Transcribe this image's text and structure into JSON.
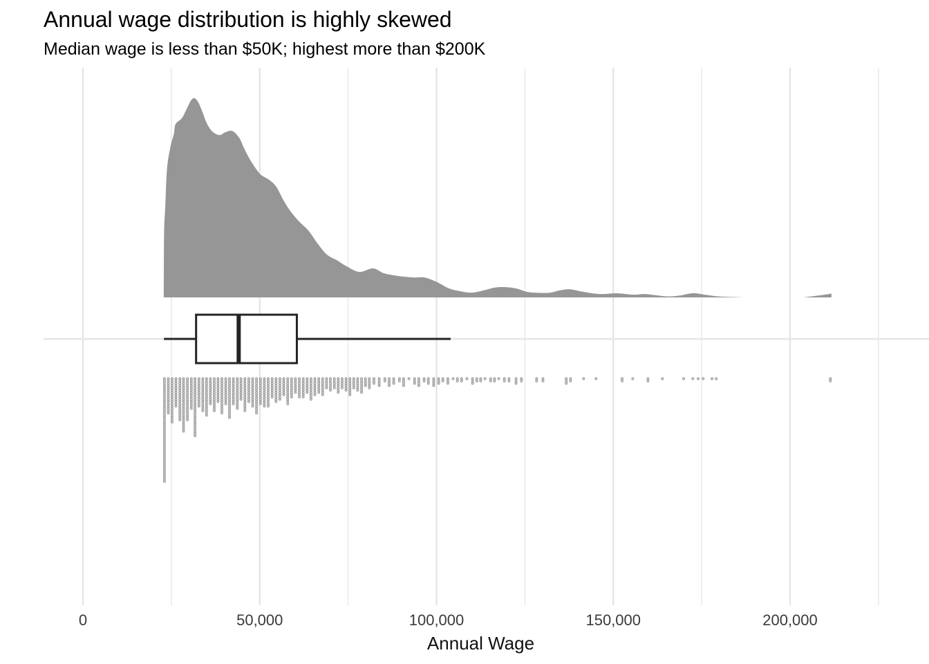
{
  "chart_data": {
    "type": "area",
    "variant": "raincloud: density area + horizontal boxplot + binned dot strip",
    "title": "Annual wage distribution is highly skewed",
    "subtitle": "Median wage is less than $50K; highest more than $200K",
    "xlabel": "Annual Wage",
    "xlim": [
      -11150,
      239300
    ],
    "grid": "vertical gridlines every 25,000 (majors at labeled breaks), single horizontal gridline through boxplot row",
    "legend_position": "none",
    "x_ticks": [
      {
        "value": 0,
        "label": "0"
      },
      {
        "value": 50000,
        "label": "50,000"
      },
      {
        "value": 100000,
        "label": "100,000"
      },
      {
        "value": 150000,
        "label": "150,000"
      },
      {
        "value": 200000,
        "label": "200,000"
      }
    ],
    "x_minor_gridlines": [
      25000,
      75000,
      125000,
      175000,
      225000
    ],
    "density": {
      "description": "kernel density of annual wage, trimmed to data range; heights normalized 0-1",
      "points": [
        [
          22850,
          0
        ],
        [
          22950,
          0.32
        ],
        [
          23300,
          0.46
        ],
        [
          23800,
          0.65
        ],
        [
          24800,
          0.76
        ],
        [
          25700,
          0.82
        ],
        [
          26200,
          0.87
        ],
        [
          28000,
          0.9
        ],
        [
          29300,
          0.945
        ],
        [
          30600,
          0.99
        ],
        [
          31600,
          1.0
        ],
        [
          32600,
          0.98
        ],
        [
          33600,
          0.94
        ],
        [
          35150,
          0.87
        ],
        [
          36800,
          0.83
        ],
        [
          38700,
          0.815
        ],
        [
          40350,
          0.83
        ],
        [
          42300,
          0.835
        ],
        [
          44250,
          0.8
        ],
        [
          45550,
          0.75
        ],
        [
          47500,
          0.685
        ],
        [
          50100,
          0.62
        ],
        [
          52700,
          0.59
        ],
        [
          54700,
          0.555
        ],
        [
          56650,
          0.49
        ],
        [
          58600,
          0.435
        ],
        [
          61200,
          0.38
        ],
        [
          63800,
          0.335
        ],
        [
          66400,
          0.27
        ],
        [
          69000,
          0.215
        ],
        [
          72000,
          0.185
        ],
        [
          74200,
          0.16
        ],
        [
          78100,
          0.128
        ],
        [
          82000,
          0.146
        ],
        [
          85000,
          0.122
        ],
        [
          87900,
          0.111
        ],
        [
          90800,
          0.104
        ],
        [
          93800,
          0.1
        ],
        [
          96700,
          0.1
        ],
        [
          100250,
          0.076
        ],
        [
          103500,
          0.045
        ],
        [
          106750,
          0.031
        ],
        [
          110000,
          0.024
        ],
        [
          113300,
          0.035
        ],
        [
          116400,
          0.049
        ],
        [
          119100,
          0.052
        ],
        [
          122500,
          0.045
        ],
        [
          125600,
          0.028
        ],
        [
          128900,
          0.023
        ],
        [
          132200,
          0.024
        ],
        [
          134800,
          0.035
        ],
        [
          137700,
          0.041
        ],
        [
          140700,
          0.031
        ],
        [
          144000,
          0.021
        ],
        [
          147100,
          0.017
        ],
        [
          151000,
          0.021
        ],
        [
          155600,
          0.014
        ],
        [
          158850,
          0.017
        ],
        [
          162100,
          0.011
        ],
        [
          165350,
          0.005
        ],
        [
          168600,
          0.009
        ],
        [
          172500,
          0.021
        ],
        [
          175800,
          0.014
        ],
        [
          179700,
          0.005
        ],
        [
          183600,
          0.002
        ],
        [
          186850,
          0
        ]
      ],
      "tail_blip_points": [
        [
          203800,
          0
        ],
        [
          206500,
          0.006
        ],
        [
          209500,
          0.013
        ],
        [
          211700,
          0.019
        ]
      ]
    },
    "boxplot": {
      "whisker_min": 22900,
      "q1": 32000,
      "median": 44050,
      "q3": 60500,
      "whisker_max": 104000
    },
    "dot_columns": [
      [
        23050,
        46
      ],
      [
        24150,
        16
      ],
      [
        25200,
        20
      ],
      [
        26300,
        13
      ],
      [
        27400,
        19
      ],
      [
        28450,
        24
      ],
      [
        29550,
        19
      ],
      [
        30650,
        14
      ],
      [
        31700,
        26
      ],
      [
        32800,
        13
      ],
      [
        33900,
        15
      ],
      [
        34950,
        17
      ],
      [
        36050,
        12
      ],
      [
        37150,
        15
      ],
      [
        38200,
        11
      ],
      [
        39300,
        16
      ],
      [
        40400,
        12
      ],
      [
        41450,
        18
      ],
      [
        42550,
        12
      ],
      [
        43650,
        14
      ],
      [
        44700,
        10
      ],
      [
        45800,
        15
      ],
      [
        46900,
        11
      ],
      [
        48000,
        13
      ],
      [
        49100,
        16
      ],
      [
        50200,
        12
      ],
      [
        51300,
        13
      ],
      [
        52400,
        13
      ],
      [
        53500,
        9
      ],
      [
        54600,
        11
      ],
      [
        55700,
        10
      ],
      [
        56800,
        8
      ],
      [
        57900,
        12
      ],
      [
        59000,
        9
      ],
      [
        60100,
        7
      ],
      [
        61200,
        9
      ],
      [
        62300,
        9
      ],
      [
        63400,
        7
      ],
      [
        64500,
        10
      ],
      [
        65600,
        8
      ],
      [
        66700,
        7
      ],
      [
        67800,
        8
      ],
      [
        68900,
        5
      ],
      [
        70000,
        6
      ],
      [
        71100,
        5
      ],
      [
        72200,
        7
      ],
      [
        73300,
        5
      ],
      [
        74400,
        6
      ],
      [
        75500,
        8
      ],
      [
        76600,
        5
      ],
      [
        77700,
        6
      ],
      [
        78800,
        7
      ],
      [
        79900,
        4
      ],
      [
        81000,
        5
      ],
      [
        82300,
        3
      ],
      [
        83800,
        4
      ],
      [
        85400,
        2
      ],
      [
        86600,
        4
      ],
      [
        87900,
        3
      ],
      [
        89500,
        2
      ],
      [
        90700,
        4
      ],
      [
        92200,
        1
      ],
      [
        93800,
        3
      ],
      [
        95000,
        4
      ],
      [
        96500,
        2
      ],
      [
        97700,
        3
      ],
      [
        99200,
        4
      ],
      [
        100600,
        3
      ],
      [
        101800,
        2
      ],
      [
        103200,
        3
      ],
      [
        104700,
        1
      ],
      [
        105900,
        2
      ],
      [
        107100,
        2
      ],
      [
        108600,
        1
      ],
      [
        110200,
        3
      ],
      [
        111400,
        2
      ],
      [
        112500,
        2
      ],
      [
        113700,
        1
      ],
      [
        115300,
        2
      ],
      [
        116400,
        2
      ],
      [
        117600,
        1
      ],
      [
        119200,
        2
      ],
      [
        120500,
        2
      ],
      [
        122500,
        3
      ],
      [
        124000,
        2
      ],
      [
        128300,
        2
      ],
      [
        130100,
        2
      ],
      [
        136700,
        3
      ],
      [
        137900,
        2
      ],
      [
        141600,
        1
      ],
      [
        145100,
        1
      ],
      [
        152500,
        2
      ],
      [
        155500,
        1
      ],
      [
        159800,
        2
      ],
      [
        163900,
        1
      ],
      [
        169900,
        1
      ],
      [
        172500,
        1
      ],
      [
        174000,
        1
      ],
      [
        175400,
        1
      ],
      [
        177900,
        1
      ],
      [
        179100,
        1
      ],
      [
        211400,
        2
      ]
    ],
    "colors": {
      "background": "#ffffff",
      "density_fill": "#969696",
      "box_stroke": "#242424",
      "box_fill": "#ffffff",
      "dot_stroke": "#8f8f8f",
      "dot_fill": "#d4d4d4",
      "grid_major": "#e3e3e3",
      "grid_minor": "#ededed",
      "grid_horizontal": "#e6e6e6",
      "title_text": "#000000",
      "axis_text": "#3a3a3a",
      "axis_title_text": "#111111"
    }
  }
}
